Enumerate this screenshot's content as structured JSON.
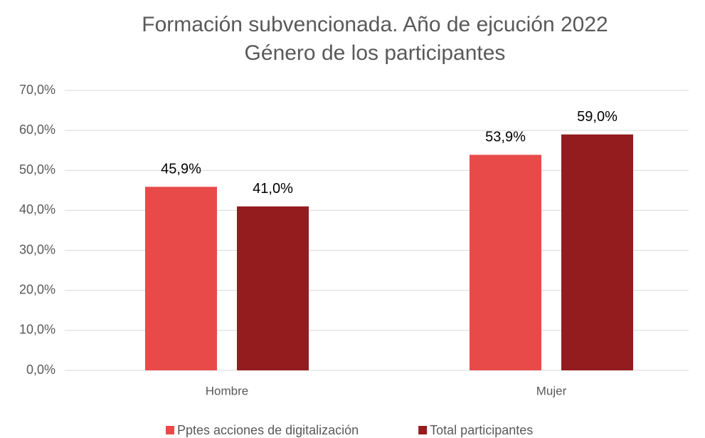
{
  "chart_data": {
    "type": "bar",
    "title": "Formación subvencionada. Año de ejcución 2022",
    "subtitle": "Género de los participantes",
    "categories": [
      "Hombre",
      "Mujer"
    ],
    "series": [
      {
        "name": "Pptes acciones de digitalización",
        "color": "#e84a4a",
        "values": [
          45.9,
          53.9
        ],
        "value_labels": [
          "45,9%",
          "53,9%"
        ]
      },
      {
        "name": "Total participantes",
        "color": "#941c1e",
        "values": [
          41.0,
          59.0
        ],
        "value_labels": [
          "41,0%",
          "59,0%"
        ]
      }
    ],
    "ylim": [
      0,
      70
    ],
    "yticks": [
      {
        "value": 0,
        "label": "0,0%"
      },
      {
        "value": 10,
        "label": "10,0%"
      },
      {
        "value": 20,
        "label": "20,0%"
      },
      {
        "value": 30,
        "label": "30,0%"
      },
      {
        "value": 40,
        "label": "40,0%"
      },
      {
        "value": 50,
        "label": "50,0%"
      },
      {
        "value": 60,
        "label": "60,0%"
      },
      {
        "value": 70,
        "label": "70,0%"
      }
    ],
    "grid": true,
    "legend": "bottom"
  }
}
